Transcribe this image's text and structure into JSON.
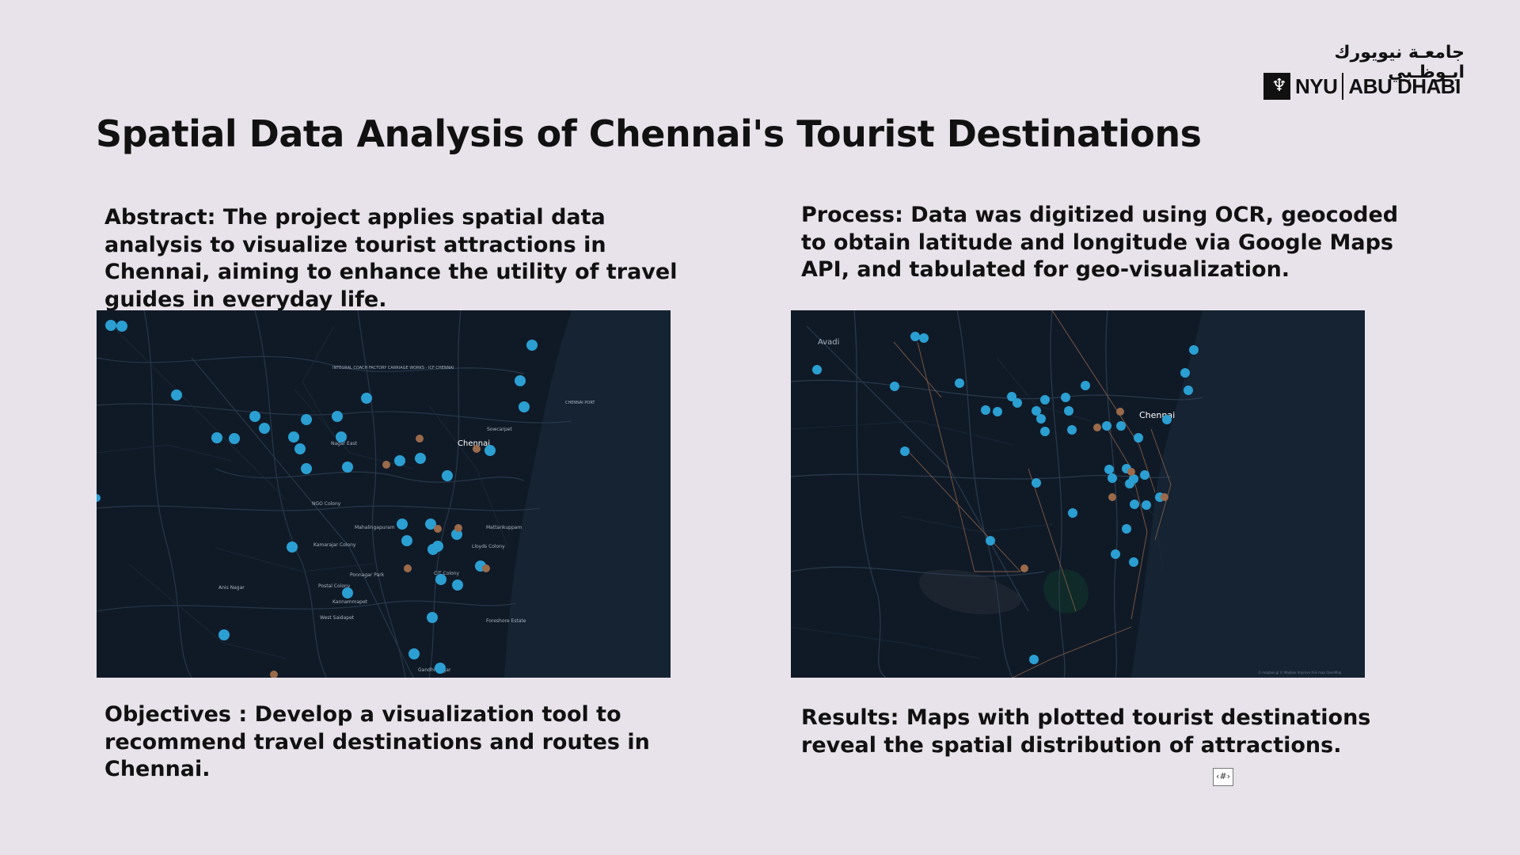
{
  "logo": {
    "arabic": "جامعـة نيويورك ابـوظـبي",
    "nyu": "NYU",
    "abu_dhabi": "ABU DHABI"
  },
  "title": "Spatial Data Analysis of Chennai's Tourist Destinations",
  "abstract": "Abstract: The project applies spatial data analysis to visualize tourist attractions in Chennai, aiming to enhance the utility of travel guides in everyday life.",
  "process": "Process: Data was digitized using OCR, geocoded to obtain latitude and longitude via Google Maps API, and tabulated for geo-visualization.",
  "objectives": "Objectives : Develop a visualization tool to recommend travel destinations and routes in Chennai.",
  "results": "Results: Maps with plotted tourist destinations reveal the spatial distribution of attractions.",
  "page_number": "‹#›",
  "colors": {
    "background": "#e8e2ea",
    "map_land": "#101a27",
    "map_sea": "#152333",
    "point_blue": "#2b9fd2",
    "point_orange": "#9a6a4a"
  },
  "map_left": {
    "labels": [
      "INTEGRAL COACH FACTORY CARRIAGE WORKS - ICF CHENNAI",
      "Chennai",
      "Sowcarpet",
      "CHENNAI PORT",
      "Nagar East",
      "NGO Colony",
      "Mahalingapuram",
      "Mattankuppam",
      "Kamarajar Colony",
      "Lloyds Colony",
      "Ponnagar Park",
      "CIT Colony",
      "Anis Nagar",
      "Postal Colony",
      "Kannammapet",
      "West Saidapet",
      "Foreshore Estate",
      "Gandhi Nagar"
    ]
  },
  "map_right": {
    "labels": [
      "Avadi",
      "Chennai"
    ],
    "attribution": "© mapbox.gl © Mapbox Improve this map OpenMap"
  }
}
